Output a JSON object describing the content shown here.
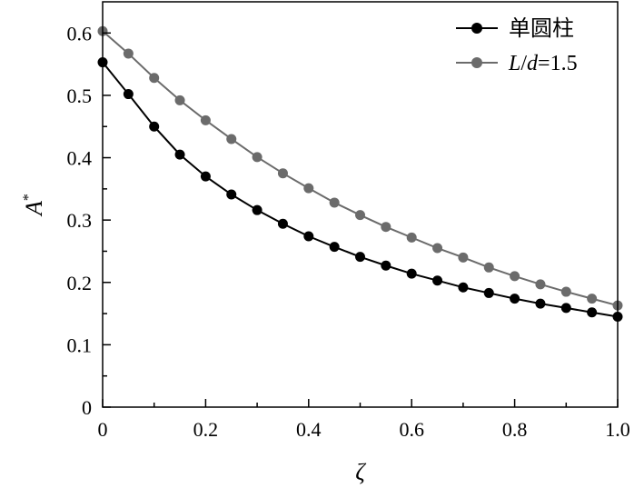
{
  "chart_data": {
    "type": "line",
    "xlabel": "ζ",
    "ylabel": "A",
    "ylabel_superscript": "*",
    "xlim": [
      0,
      1.0
    ],
    "ylim": [
      0,
      0.65
    ],
    "x_ticks": [
      "0",
      "0.2",
      "0.4",
      "0.6",
      "0.8",
      "1.0"
    ],
    "x_tick_values": [
      0,
      0.2,
      0.4,
      0.6,
      0.8,
      1.0
    ],
    "y_ticks": [
      "0",
      "0.1",
      "0.2",
      "0.3",
      "0.4",
      "0.5",
      "0.6"
    ],
    "y_tick_values": [
      0,
      0.1,
      0.2,
      0.3,
      0.4,
      0.5,
      0.6
    ],
    "grid": false,
    "legend_position": "top-right",
    "x": [
      0,
      0.05,
      0.1,
      0.15,
      0.2,
      0.25,
      0.3,
      0.35,
      0.4,
      0.45,
      0.5,
      0.55,
      0.6,
      0.65,
      0.7,
      0.75,
      0.8,
      0.85,
      0.9,
      0.95,
      1.0
    ],
    "series": [
      {
        "name": "单圆柱",
        "color": "#000000",
        "values": [
          0.553,
          0.502,
          0.45,
          0.405,
          0.37,
          0.341,
          0.316,
          0.294,
          0.274,
          0.257,
          0.241,
          0.227,
          0.214,
          0.203,
          0.192,
          0.183,
          0.174,
          0.166,
          0.159,
          0.152,
          0.145
        ]
      },
      {
        "name": "L/d=1.5",
        "name_parts": {
          "L": "L",
          "slash": "/",
          "d": "d",
          "rest": "=1.5"
        },
        "color": "#6b6b6b",
        "values": [
          0.603,
          0.567,
          0.528,
          0.492,
          0.46,
          0.43,
          0.401,
          0.375,
          0.351,
          0.328,
          0.308,
          0.289,
          0.272,
          0.255,
          0.24,
          0.224,
          0.21,
          0.197,
          0.185,
          0.174,
          0.163
        ]
      }
    ]
  }
}
